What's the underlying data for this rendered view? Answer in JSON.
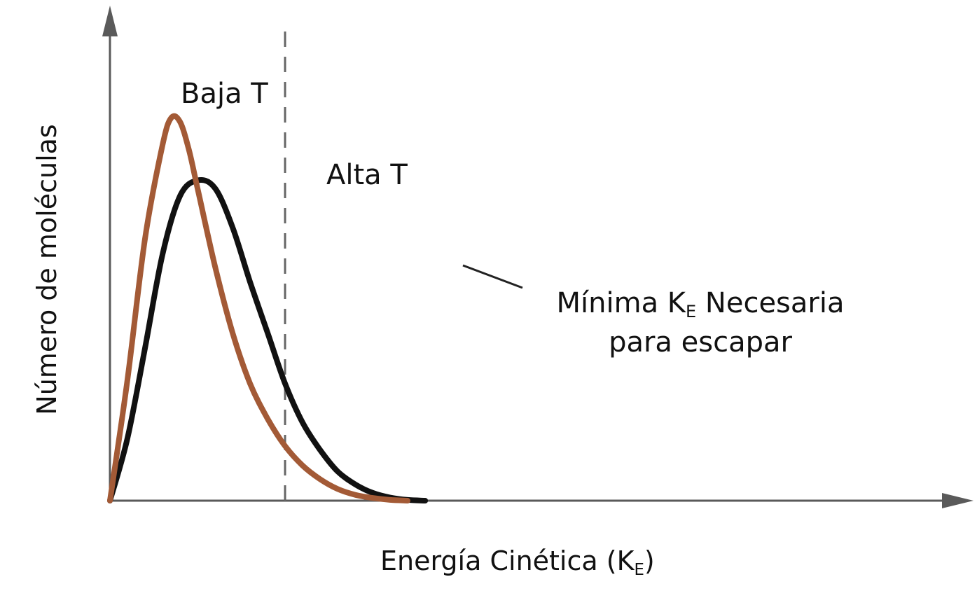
{
  "colors": {
    "axis": "#5a5a5a",
    "low_temperature": "#a35a36",
    "high_temperature": "#111111",
    "threshold_line": "#666666",
    "text": "#111111"
  },
  "chart_data": {
    "type": "line",
    "xlabel": "Energía Cinética (K",
    "xlabel_sub": "E",
    "xlabel_suffix": ")",
    "ylabel": "Número de moléculas",
    "xlim": [
      0,
      10
    ],
    "ylim": [
      0,
      10
    ],
    "grid": false,
    "axis_ticks": false,
    "series": [
      {
        "name": "Baja T",
        "key": "low",
        "color": "#a35a36",
        "x": [
          0,
          0.4,
          0.8,
          1.2,
          1.4,
          1.6,
          1.8,
          2.0,
          2.4,
          2.8,
          3.2,
          3.6,
          4.0,
          4.4,
          4.8,
          5.2,
          5.6,
          6.0,
          6.4,
          6.8
        ],
        "values": [
          0,
          3.1,
          6.7,
          9.1,
          9.8,
          9.7,
          9.0,
          8.0,
          6.0,
          4.3,
          3.0,
          2.1,
          1.4,
          0.9,
          0.55,
          0.3,
          0.15,
          0.07,
          0.02,
          0
        ]
      },
      {
        "name": "Alta T",
        "key": "high",
        "color": "#111111",
        "x": [
          0,
          0.4,
          0.8,
          1.2,
          1.6,
          2.0,
          2.4,
          2.8,
          3.2,
          3.6,
          4.0,
          4.4,
          4.8,
          5.2,
          5.6,
          6.0,
          6.4,
          6.8,
          7.2
        ],
        "values": [
          0,
          1.6,
          3.9,
          6.3,
          7.8,
          8.2,
          8.0,
          7.0,
          5.6,
          4.3,
          3.0,
          2.0,
          1.3,
          0.75,
          0.42,
          0.2,
          0.08,
          0.02,
          0
        ]
      }
    ],
    "threshold": {
      "x": 4.0,
      "style": "dashed",
      "label_line1": "Mínima K",
      "label_sub": "E",
      "label_line1_suffix": " Necesaria",
      "label_line2": "para escapar"
    }
  }
}
